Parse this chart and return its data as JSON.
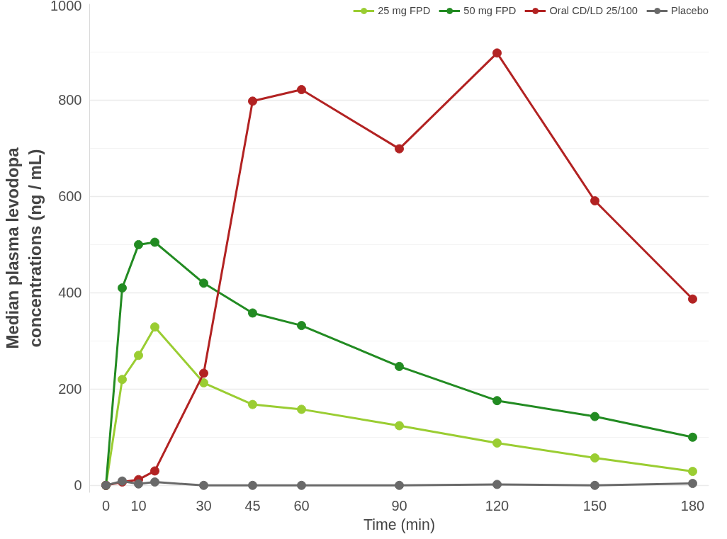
{
  "chart_data": {
    "type": "line",
    "xlabel": "Time (min)",
    "ylabel": "Median plasma levodopa\nconcentrations (ng / mL)",
    "x": [
      0,
      5,
      10,
      15,
      30,
      45,
      60,
      90,
      120,
      150,
      180
    ],
    "series": [
      {
        "name": "25 mg FPD",
        "color": "#9acd32",
        "values": [
          0,
          220,
          270,
          329,
          213,
          168,
          158,
          124,
          88,
          57,
          29
        ]
      },
      {
        "name": "50 mg FPD",
        "color": "#228b22",
        "values": [
          0,
          410,
          500,
          505,
          420,
          358,
          332,
          247,
          176,
          143,
          100
        ]
      },
      {
        "name": "Oral CD/LD 25/100",
        "color": "#b22222",
        "values": [
          0,
          7,
          12,
          30,
          233,
          798,
          822,
          699,
          898,
          591,
          387
        ]
      },
      {
        "name": "Placebo",
        "color": "#696969",
        "values": [
          0,
          9,
          3,
          7,
          0,
          0,
          0,
          0,
          2,
          0,
          4
        ]
      }
    ],
    "xlim": [
      -5,
      185
    ],
    "ylim": [
      -15,
      1000
    ],
    "xticks": [
      0,
      10,
      30,
      45,
      60,
      90,
      120,
      150,
      180
    ],
    "yticks": [
      0,
      200,
      400,
      600,
      800,
      1000
    ],
    "grid": "y",
    "legend": "top",
    "marker": "circle",
    "line_style": "solid"
  }
}
